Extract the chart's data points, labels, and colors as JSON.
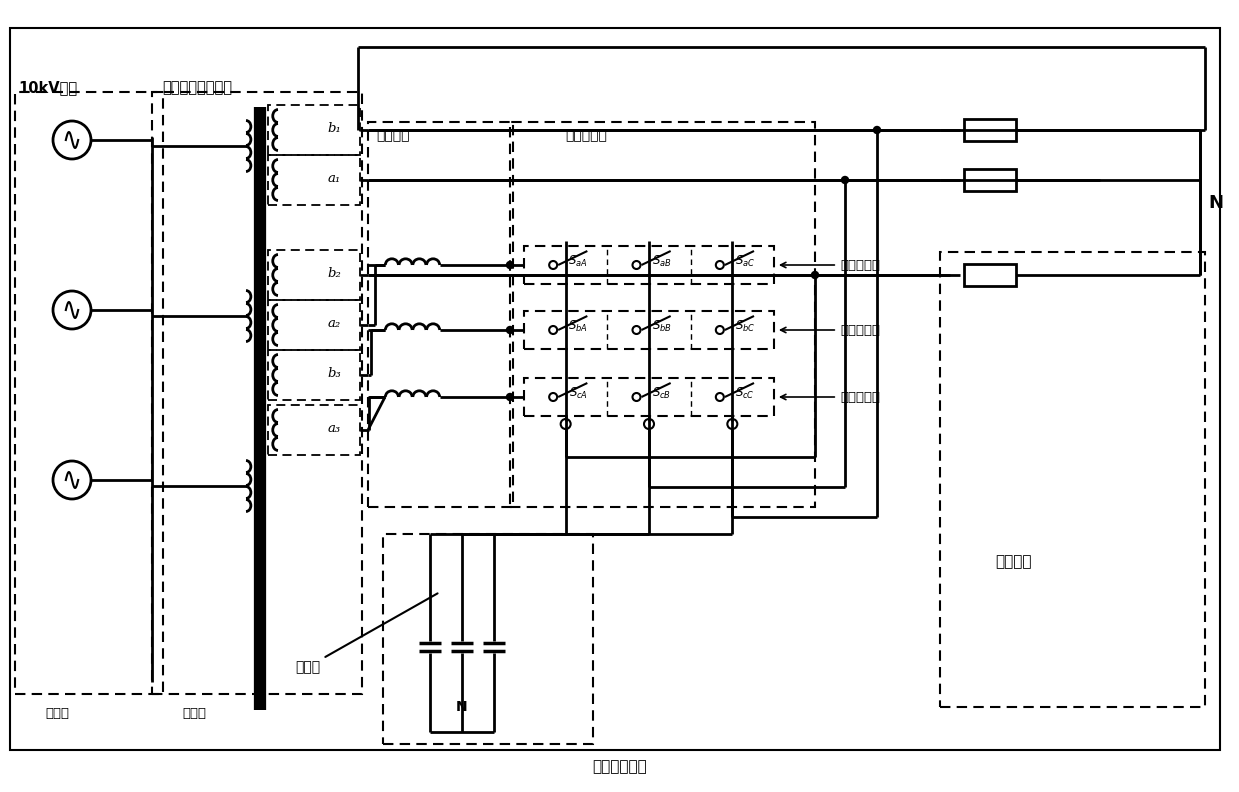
{
  "bg_color": "#ffffff",
  "title_bottom": "滤波器中性点",
  "label_10kv": "10kV电网",
  "label_transformer": "三相多绕组变压器",
  "label_primary": "一次侧",
  "label_secondary": "二次侧",
  "label_filter_ind": "滤波电感",
  "label_matrix": "矩阵变换器",
  "label_filter": "滤波器",
  "label_load": "感性负载",
  "label_N": "N",
  "label_g1": "第一开关组",
  "label_g2": "第二开关组",
  "label_g3": "第三开关组",
  "sec_labels": [
    "b₁",
    "a₁",
    "b₂",
    "a₂",
    "b₃",
    "a₃"
  ]
}
